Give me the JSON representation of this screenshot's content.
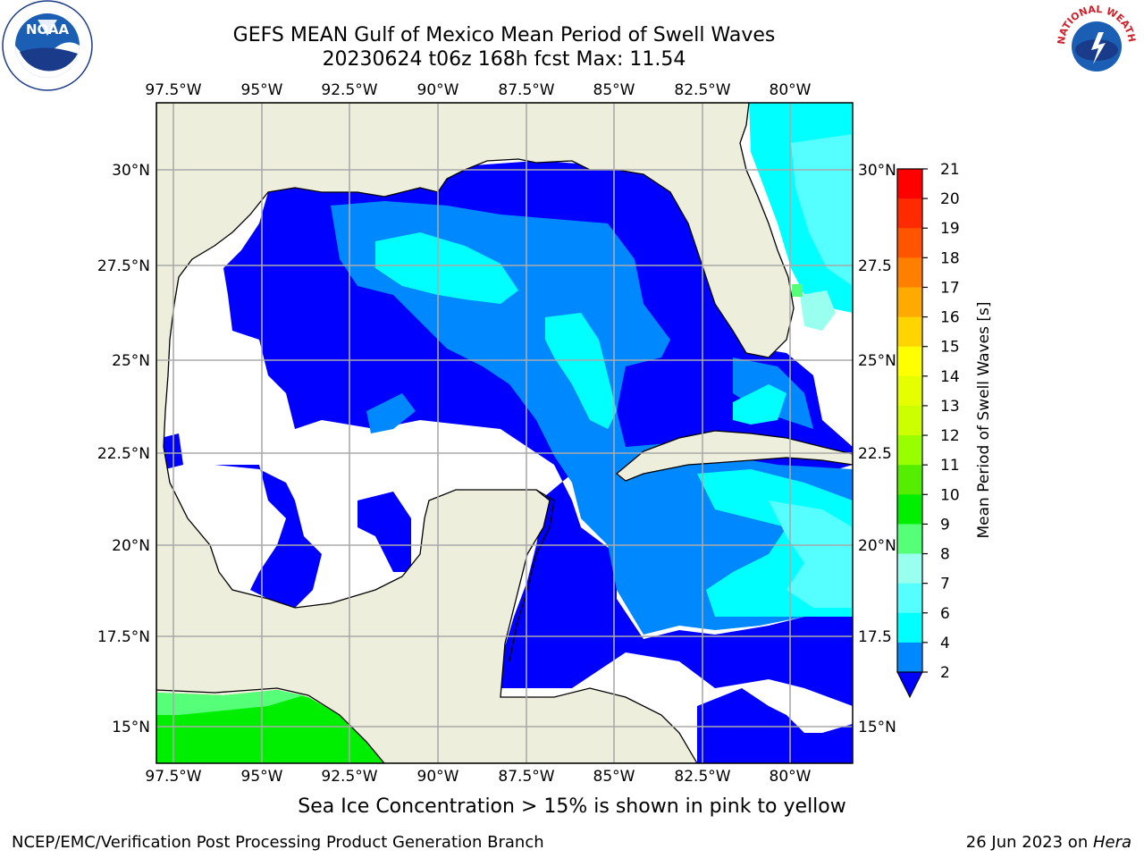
{
  "title": {
    "line1": "GEFS MEAN Gulf of Mexico Mean Period of Swell Waves",
    "line2": "20230624 t06z 168h fcst   Max: 11.54"
  },
  "axes": {
    "lon_labels": [
      "97.5°W",
      "95°W",
      "92.5°W",
      "90°W",
      "87.5°W",
      "85°W",
      "82.5°W",
      "80°W"
    ],
    "lat_labels_left": [
      "30°N",
      "27.5°N",
      "25°N",
      "22.5°N",
      "20°N",
      "17.5°N",
      "15°N"
    ],
    "lat_labels_right": [
      "30°N",
      "27.5",
      "25°N",
      "22.5",
      "20°N",
      "17.5",
      "15°N"
    ]
  },
  "colorbar": {
    "label": "Mean Period of Swell Waves [s]",
    "ticks": [
      "21",
      "20",
      "19",
      "18",
      "17",
      "16",
      "15",
      "14",
      "13",
      "12",
      "11",
      "10",
      "9",
      "8",
      "7",
      "6",
      "4",
      "2"
    ],
    "colors": [
      "#ff0000",
      "#ff2a00",
      "#ff5500",
      "#ff8000",
      "#ffaa00",
      "#ffd400",
      "#ffff00",
      "#e6ff00",
      "#ccff00",
      "#99ff00",
      "#55ee00",
      "#00ee00",
      "#55ff77",
      "#99ffee",
      "#55ffff",
      "#00ffff",
      "#0088ff",
      "#0000ff"
    ]
  },
  "palette": {
    "land": "#eeeedc",
    "no_data": "#ffffff",
    "deep_blue": "#0000ff",
    "mid_blue": "#0088ff",
    "light_cyan": "#00ffff",
    "pale_cyan": "#55ffff",
    "aqua": "#99ffee",
    "green": "#00ee00",
    "light_green": "#55ff77",
    "grid": "#aaaaaa"
  },
  "logos": {
    "noaa": "NOAA",
    "nws": "NATIONAL WEATHER SERVICE"
  },
  "caption": "Sea Ice Concentration > 15% is shown in pink to yellow",
  "footer": {
    "left": "NCEP/EMC/Verification Post Processing Product Generation Branch",
    "right_prefix": "26 Jun 2023 on ",
    "right_host": "Hera"
  }
}
